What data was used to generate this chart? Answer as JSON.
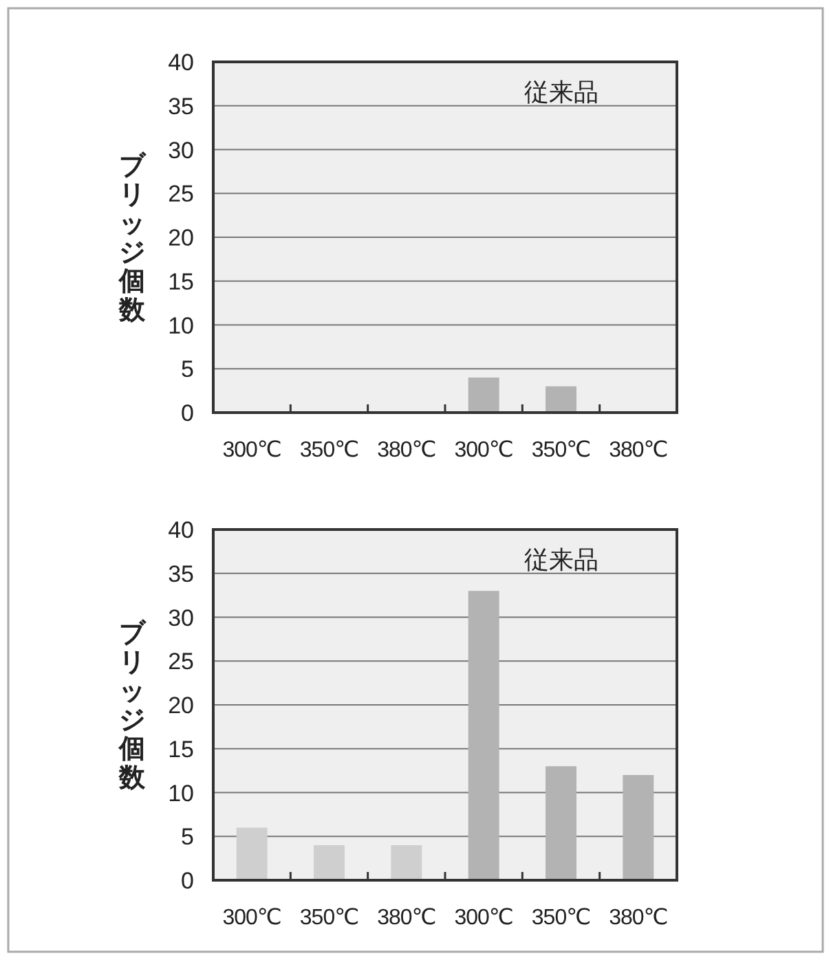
{
  "chart_data": [
    {
      "type": "bar",
      "ylabel": "ブリッジ個数",
      "categories": [
        "300℃",
        "350℃",
        "380℃",
        "300℃",
        "350℃",
        "380℃"
      ],
      "values": [
        0,
        0,
        0,
        4,
        3,
        0
      ],
      "colors": [
        "#cfcfcf",
        "#cfcfcf",
        "#cfcfcf",
        "#b3b3b3",
        "#b3b3b3",
        "#b3b3b3"
      ],
      "ylim": [
        0,
        40
      ],
      "yticks": [
        0,
        5,
        10,
        15,
        20,
        25,
        30,
        35,
        40
      ],
      "grid": "y",
      "annotations": [
        "従来品"
      ]
    },
    {
      "type": "bar",
      "ylabel": "ブリッジ個数",
      "categories": [
        "300℃",
        "350℃",
        "380℃",
        "300℃",
        "350℃",
        "380℃"
      ],
      "values": [
        6,
        4,
        4,
        33,
        13,
        12
      ],
      "colors": [
        "#cfcfcf",
        "#cfcfcf",
        "#cfcfcf",
        "#b3b3b3",
        "#b3b3b3",
        "#b3b3b3"
      ],
      "ylim": [
        0,
        40
      ],
      "yticks": [
        0,
        5,
        10,
        15,
        20,
        25,
        30,
        35,
        40
      ],
      "grid": "y",
      "annotations": [
        "従来品"
      ]
    }
  ]
}
